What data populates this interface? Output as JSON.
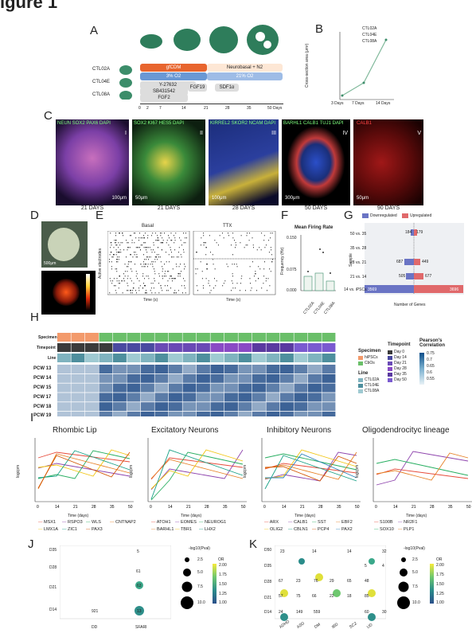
{
  "figure_title": "igure 1",
  "panels": {
    "A": {
      "label": "A",
      "lines": [
        "CTL02A",
        "CTL04E",
        "CTL08A"
      ],
      "bars": {
        "gfcdm": "gfCDM",
        "neurobasal": "Neurobasal + N2",
        "o2_3": "3% O2",
        "o2_21": "21% O2",
        "y27632": "Y-27632",
        "sb": "SB431542",
        "fgf2": "FGF2",
        "fgf19": "FGF19",
        "sdf1a": "SDF1α"
      },
      "axis_ticks": [
        "0",
        "2",
        "7",
        "14",
        "21",
        "28",
        "35",
        "50 Days"
      ]
    },
    "B": {
      "label": "B",
      "legend": [
        "CTL02A",
        "CTL04E",
        "CTL08A"
      ],
      "ylabel": "Cross-section area (μm²)",
      "yticks": [
        "2.5×10⁶",
        "2.0×10⁶",
        "1.5×10⁶",
        "1.0×10⁶",
        "5.0×10⁵",
        "0"
      ],
      "xticks": [
        "3 Days",
        "7 Days",
        "14 Days"
      ]
    },
    "C": {
      "label": "C",
      "images": [
        {
          "markers": "NEUN SOX2 PAX6 DAPI",
          "roman": "I",
          "scale": "100μm",
          "day": "21 DAYS"
        },
        {
          "markers": "SOX2 KI67 HES5 DAPI",
          "roman": "II",
          "scale": "50μm",
          "day": "21 DAYS"
        },
        {
          "markers": "KIRREL2 SKOR2 NCAM DAPI",
          "roman": "III",
          "scale": "100μm",
          "day": "28 DAYS"
        },
        {
          "markers": "BARHL1 CALB1 TUJ1 DAPI",
          "roman": "IV",
          "scale": "300μm",
          "day": "50 DAYS"
        },
        {
          "markers": "CALB1",
          "roman": "V",
          "scale": "50μm",
          "day": "90 DAYS"
        }
      ]
    },
    "D": {
      "label": "D",
      "scale": "500μm"
    },
    "E": {
      "label": "E",
      "titles": [
        "Basal",
        "TTX"
      ],
      "ylabel": "Active electrodes",
      "xlabel": "Time (s)"
    },
    "F": {
      "label": "F",
      "title": "Mean Firing Rate",
      "ylabel": "Frequency (Hz)",
      "yticks": [
        "0.150",
        "0.125",
        "0.100",
        "0.075",
        "0.050",
        "0.025",
        "0.000"
      ],
      "xticks": [
        "CTL02A",
        "CTL04E",
        "CTL08A"
      ]
    },
    "G": {
      "label": "G",
      "legend": [
        "Downregulated",
        "Upregulated"
      ],
      "ylabel": "Sample",
      "xlabel": "Number of Genes",
      "rows": [
        {
          "name": "50 vs. 35",
          "down": "184",
          "up": "179"
        },
        {
          "name": "35 vs. 28",
          "down": "",
          "up": ""
        },
        {
          "name": "28 vs. 21",
          "down": "687",
          "up": "449"
        },
        {
          "name": "21 vs. 14",
          "down": "505",
          "up": "677"
        },
        {
          "name": "14 vs. iPSCs",
          "down": "3569",
          "up": "3696"
        }
      ]
    },
    "H": {
      "label": "H",
      "row_labels": [
        "Specimen",
        "Timepoint",
        "Line"
      ],
      "pcw": [
        "PCW 13",
        "PCW 14",
        "PCW 15",
        "PCW 17",
        "PCW 18",
        "PCW 19"
      ],
      "legend_specimen_title": "Specimen",
      "legend_specimen": [
        "hiPSCs",
        "CbOs"
      ],
      "legend_timepoint_title": "Timepoint",
      "legend_timepoint": [
        "Day 0",
        "Day 14",
        "Day 21",
        "Day 28",
        "Day 35",
        "Day 50"
      ],
      "legend_line_title": "Line",
      "legend_line": [
        "CTL02A",
        "CTL04E",
        "CTL08A"
      ],
      "legend_corr_title": "Pearson's Correlation",
      "legend_corr": [
        "0.75",
        "0.7",
        "0.65",
        "0.6",
        "0.55"
      ]
    },
    "I": {
      "label": "I",
      "ylabel": "logcpm",
      "xlabel": "Time (days)",
      "xticks": [
        "0",
        "14",
        "21",
        "28",
        "35",
        "50"
      ],
      "plots": [
        {
          "title": "Rhombic Lip",
          "genes": [
            "MSX1",
            "RSPO3",
            "WLS",
            "CNTNAP2",
            "LMX1A",
            "ZIC1",
            "PAX3"
          ]
        },
        {
          "title": "Excitatory Neurons",
          "genes": [
            "ATOH1",
            "EOMES",
            "NEUROG1",
            "BARHL1",
            "TBR1",
            "LHX2"
          ]
        },
        {
          "title": "Inhibitory Neurons",
          "genes": [
            "ARX",
            "CALB1",
            "SST",
            "EBF2",
            "OLIG2",
            "CBLN1",
            "PCP4",
            "PAX2"
          ]
        },
        {
          "title": "Oligodendrocityc lineage",
          "genes": [
            "S100B",
            "NR2F1",
            "SOX10",
            "PLP1"
          ]
        }
      ]
    },
    "J": {
      "label": "J",
      "yticks": [
        "D35",
        "D28",
        "D21",
        "D14"
      ],
      "xticks": [
        "DD",
        "SFARI"
      ],
      "values": [
        "5",
        "61",
        "63",
        "13",
        "921"
      ],
      "legend_size_title": "-log10(Pval)",
      "legend_size": [
        "2.5",
        "5.0",
        "7.5",
        "10.0"
      ],
      "legend_or_title": "OR",
      "legend_or": [
        "2.00",
        "1.75",
        "1.50",
        "1.25",
        "1.00"
      ]
    },
    "K": {
      "label": "K",
      "yticks": [
        "D50",
        "D35",
        "D28",
        "D21",
        "D14"
      ],
      "xticks": [
        "ADHD",
        "ASD",
        "DM",
        "IBD",
        "SCZ",
        "UD"
      ],
      "values": [
        "23",
        "14",
        "14",
        "32",
        "5",
        "4",
        "67",
        "23",
        "76",
        "29",
        "65",
        "48",
        "57",
        "75",
        "66",
        "22",
        "18",
        "85",
        "24",
        "149",
        "559",
        "60",
        "30"
      ],
      "legend_size_title": "-log10(Pval)",
      "legend_size": [
        "2.5",
        "5.0",
        "7.5",
        "10.0"
      ],
      "legend_or_title": "OR",
      "legend_or": [
        "2.00",
        "1.75",
        "1.50",
        "1.25",
        "1.00"
      ]
    }
  }
}
